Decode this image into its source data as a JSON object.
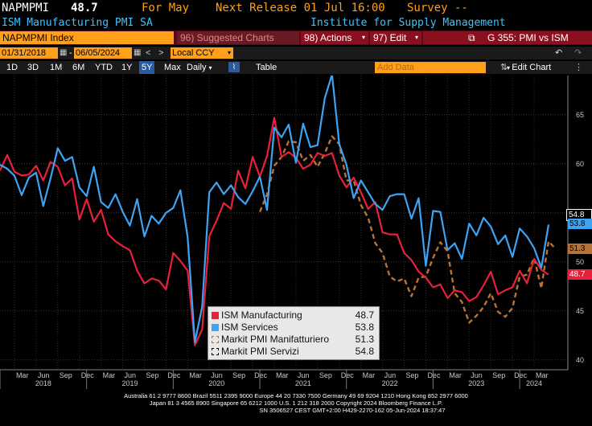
{
  "header": {
    "ticker": "NAPMPMI",
    "value": "48.7",
    "for_label": "For May",
    "next_release": "Next Release 01 Jul 16:00",
    "survey": "Survey --",
    "description": "ISM Manufacturing PMI SA",
    "source": "Institute for Supply Management"
  },
  "command_bar": {
    "security": "NAPMPMI Index",
    "suggested_charts": "96) Suggested Charts",
    "actions": "98) Actions",
    "edit": "97) Edit",
    "chart_title": "G 355: PMI vs ISM"
  },
  "date_bar": {
    "start_date": "01/31/2018",
    "end_date": "06/05/2024",
    "currency": "Local CCY"
  },
  "range_bar": {
    "ranges": [
      "1D",
      "3D",
      "1M",
      "6M",
      "YTD",
      "1Y",
      "5Y",
      "Max"
    ],
    "selected_range": "5Y",
    "frequency": "Daily",
    "table_label": "Table",
    "add_data_placeholder": "Add Data",
    "edit_chart": "Edit Chart"
  },
  "legend": [
    {
      "name": "ISM Manufacturing",
      "value": "48.7",
      "color": "#e8203c"
    },
    {
      "name": "ISM Services",
      "value": "53.8",
      "color": "#3ea3f2"
    },
    {
      "name": "Markit PMI Manifatturiero",
      "value": "51.3",
      "color": "#b87333"
    },
    {
      "name": "Markit PMI Servizi",
      "value": "54.8",
      "color": "#000000"
    }
  ],
  "badges": [
    {
      "value": "54.8",
      "bg": "#000000",
      "fg": "#ffffff"
    },
    {
      "value": "53.8",
      "bg": "#3ea3f2",
      "fg": "#000000"
    },
    {
      "value": "51.3",
      "bg": "#b87333",
      "fg": "#000000"
    },
    {
      "value": "48.7",
      "bg": "#e8203c",
      "fg": "#ffffff"
    }
  ],
  "footer": {
    "line1": "Australia 61 2 9777 8600 Brazil 5511 2395 9000 Europe 44 20 7330 7500 Germany 49 69 9204 1210 Hong Kong 852 2977 6000",
    "line2": "Japan 81 3 4565 8900        Singapore 65 6212 1000        U.S. 1 212 318 2000        Copyright 2024 Bloomberg Finance L.P.",
    "line3": "SN 3506527 CEST GMT+2:00 H429-2270-162 05-Jun-2024 18:37:47"
  },
  "chart_data": {
    "type": "line",
    "title": "G 355: PMI vs ISM",
    "ylim": [
      39,
      69
    ],
    "yticks": [
      40,
      45,
      50,
      55,
      60,
      65
    ],
    "x_range": [
      "2018-01",
      "2024-05"
    ],
    "x_tick_labels": [
      "Mar",
      "Jun",
      "Sep",
      "Dec",
      "Mar",
      "Jun",
      "Sep",
      "Dec",
      "Mar",
      "Jun",
      "Sep",
      "Dec",
      "Mar",
      "Jun",
      "Sep",
      "Dec",
      "Mar",
      "Jun",
      "Sep",
      "Dec",
      "Mar",
      "Jun",
      "Sep",
      "Dec",
      "Mar"
    ],
    "year_labels": [
      "2018",
      "2019",
      "2020",
      "2021",
      "2022",
      "2023",
      "2024"
    ],
    "grid": true,
    "legend_position": "bottom-center",
    "series": [
      {
        "name": "ISM Manufacturing",
        "color": "#e8203c",
        "style": "solid",
        "start": "2018-01",
        "values": [
          59.3,
          60.9,
          59.2,
          58.8,
          58.9,
          59.8,
          58.3,
          60.2,
          59.7,
          57.8,
          58.5,
          54.3,
          56.4,
          54.1,
          55.3,
          52.8,
          52.1,
          51.6,
          51.2,
          49.1,
          47.8,
          48.3,
          48.1,
          47.2,
          50.9,
          50.1,
          49.1,
          41.5,
          43.1,
          52.6,
          54.2,
          56,
          55.4,
          59.3,
          57.5,
          60.7,
          58.7,
          60.8,
          64.7,
          60.7,
          61.2,
          60.6,
          59.5,
          59.9,
          61.1,
          60.8,
          61.1,
          58.8,
          57.6,
          58.6,
          57.1,
          55.4,
          56.1,
          53,
          52.8,
          52.8,
          50.9,
          50.2,
          49,
          48.4,
          47.4,
          47.7,
          46.3,
          47.1,
          46.9,
          46,
          46.4,
          47.6,
          49,
          46.7,
          47.1,
          47.4,
          49.1,
          47.8,
          50.3,
          49.2,
          48.7
        ]
      },
      {
        "name": "ISM Services",
        "color": "#3ea3f2",
        "style": "solid",
        "start": "2018-01",
        "values": [
          59.9,
          59.5,
          58.8,
          56.8,
          58.6,
          59.1,
          55.7,
          58.5,
          61.6,
          60.3,
          60.7,
          57.6,
          56.7,
          59.7,
          56.1,
          55.5,
          56.9,
          55.1,
          53.7,
          56.4,
          52.6,
          54.7,
          53.9,
          55,
          55.5,
          57.3,
          52.5,
          41.8,
          45.4,
          57.1,
          58.1,
          56.9,
          57.8,
          56.6,
          55.9,
          57.2,
          58.7,
          55.3,
          63.7,
          62.7,
          64,
          60.1,
          64.1,
          61.7,
          61.9,
          66.7,
          69.1,
          62,
          59.9,
          56.5,
          58.3,
          57.1,
          55.9,
          55.3,
          56.7,
          56.9,
          56.9,
          54.4,
          56.5,
          49.6,
          55.2,
          55.1,
          51.2,
          51.9,
          50.3,
          53.9,
          52.7,
          54.5,
          53.6,
          51.8,
          52.7,
          50.5,
          53.4,
          52.6,
          51.4,
          49.4,
          53.8
        ]
      },
      {
        "name": "Markit PMI Manifatturiero",
        "color": "#b87333",
        "style": "dashed",
        "start": "2021-01",
        "values": [
          55.1,
          56.9,
          59.8,
          60.7,
          62.3,
          62.2,
          60.3,
          60.9,
          59.7,
          61.1,
          62.8,
          62,
          58.3,
          58.3,
          55.8,
          54.5,
          51.9,
          50.9,
          48.5,
          48,
          48.3,
          46.5,
          48.4,
          48.5,
          50.4,
          52,
          51.1,
          46.8,
          45.9,
          43.8,
          44.5,
          45.4,
          46.8,
          44.9,
          44.4,
          45.3,
          48.5,
          48.7,
          50.4,
          47.3,
          52.1,
          51.3
        ]
      },
      {
        "name": "Markit PMI Servizi",
        "color": "#000000",
        "style": "dashed",
        "start": "2021-01",
        "values": [
          44.7,
          48.8,
          48.6,
          47.3,
          55.1,
          56.7,
          58,
          59.7,
          58.5,
          52.4,
          55.9,
          53,
          48.5,
          52.8,
          52.1,
          55.7,
          53.7,
          51.6,
          48.4,
          48.4,
          48.8,
          46.4,
          49.5,
          49.9,
          51.2,
          51.6,
          55.7,
          57.6,
          54,
          52.2,
          51.5,
          49.8,
          49.9,
          47.7,
          49.5,
          49.8,
          51.2,
          52.2,
          54.6,
          54.3,
          54.2,
          54.8
        ]
      }
    ],
    "last_values": {
      "ISM Manufacturing": 48.7,
      "ISM Services": 53.8,
      "Markit PMI Manifatturiero": 51.3,
      "Markit PMI Servizi": 54.8
    }
  }
}
